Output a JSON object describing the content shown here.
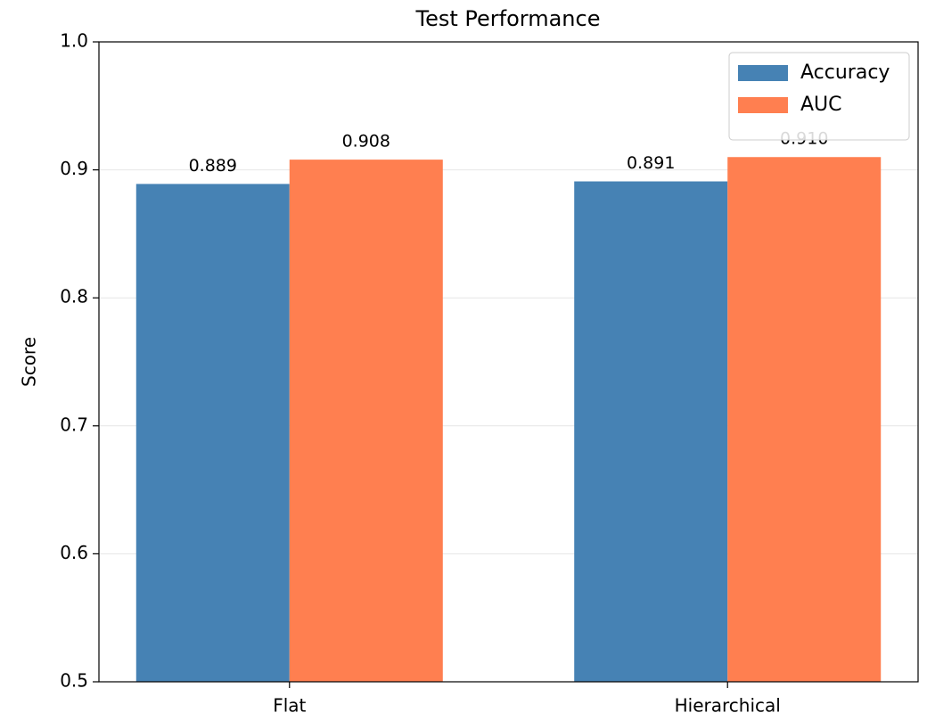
{
  "chart_data": {
    "type": "bar",
    "title": "Test Performance",
    "ylabel": "Score",
    "categories": [
      "Flat",
      "Hierarchical"
    ],
    "series": [
      {
        "name": "Accuracy",
        "color": "#4682b4",
        "values": [
          0.889,
          0.891
        ],
        "value_labels": [
          "0.889",
          "0.891"
        ]
      },
      {
        "name": "AUC",
        "color": "#ff7f50",
        "values": [
          0.908,
          0.91
        ],
        "value_labels": [
          "0.908",
          "0.910"
        ]
      }
    ],
    "ylim": [
      0.5,
      1.0
    ],
    "yticks": [
      0.5,
      0.6,
      0.7,
      0.8,
      0.9,
      {
        "value": 1.0,
        "label": "1.0"
      }
    ],
    "grid": true,
    "legend": "upper right"
  }
}
